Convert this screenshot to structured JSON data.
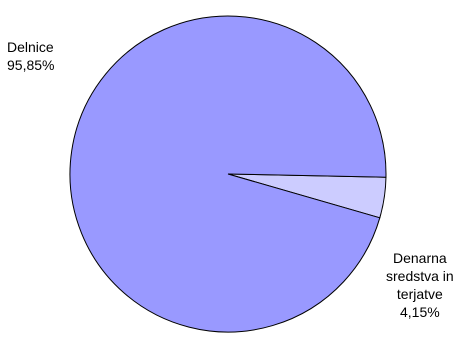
{
  "chart_data": {
    "type": "pie",
    "slices": [
      {
        "label_lines": [
          "Delnice",
          "95,85%"
        ],
        "value": 95.85,
        "color": "#9999FF"
      },
      {
        "label_lines": [
          "Denarna",
          "sredstva in",
          "terjatve",
          "4,15%"
        ],
        "value": 4.15,
        "color": "#CCCCFF"
      }
    ],
    "start_angle_deg": 0,
    "direction": "clockwise",
    "legend": "none"
  }
}
